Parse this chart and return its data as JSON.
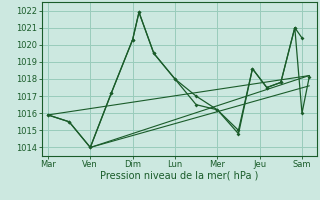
{
  "xlabel": "Pression niveau de la mer( hPa )",
  "bg_color": "#cce8e0",
  "grid_color": "#99ccbb",
  "line_color": "#1a5c2a",
  "ylim": [
    1013.5,
    1022.5
  ],
  "yticks": [
    1014,
    1015,
    1016,
    1017,
    1018,
    1019,
    1020,
    1021,
    1022
  ],
  "xtick_labels": [
    "Mar",
    "Ven",
    "Dim",
    "Lun",
    "Mer",
    "Jeu",
    "Sam"
  ],
  "xtick_positions": [
    0,
    1,
    2,
    3,
    4,
    5,
    6
  ],
  "xlim": [
    -0.15,
    6.35
  ],
  "series1_x": [
    0,
    0.5,
    1.0,
    1.5,
    2.0,
    2.15,
    2.5,
    3.0,
    3.5,
    4.0,
    4.5,
    4.83,
    5.17,
    5.5,
    5.83,
    6.0
  ],
  "series1_y": [
    1015.9,
    1015.5,
    1014.0,
    1017.2,
    1020.3,
    1021.9,
    1019.5,
    1018.0,
    1016.5,
    1016.2,
    1015.0,
    1018.6,
    1017.5,
    1017.8,
    1021.0,
    1020.4
  ],
  "series2_x": [
    0,
    0.5,
    1.0,
    1.5,
    2.0,
    2.15,
    2.5,
    3.0,
    3.5,
    4.0,
    4.5,
    4.83,
    5.17,
    5.5,
    5.83,
    6.0,
    6.17
  ],
  "series2_y": [
    1015.9,
    1015.5,
    1014.0,
    1017.2,
    1020.3,
    1021.9,
    1019.5,
    1018.0,
    1017.0,
    1016.2,
    1014.8,
    1018.6,
    1017.5,
    1017.8,
    1021.0,
    1016.0,
    1018.1
  ],
  "trend1_x": [
    0,
    6.17
  ],
  "trend1_y": [
    1015.9,
    1018.2
  ],
  "trend2_x": [
    1.0,
    6.17
  ],
  "trend2_y": [
    1014.0,
    1018.2
  ],
  "trend3_x": [
    1.0,
    6.17
  ],
  "trend3_y": [
    1014.0,
    1017.6
  ]
}
